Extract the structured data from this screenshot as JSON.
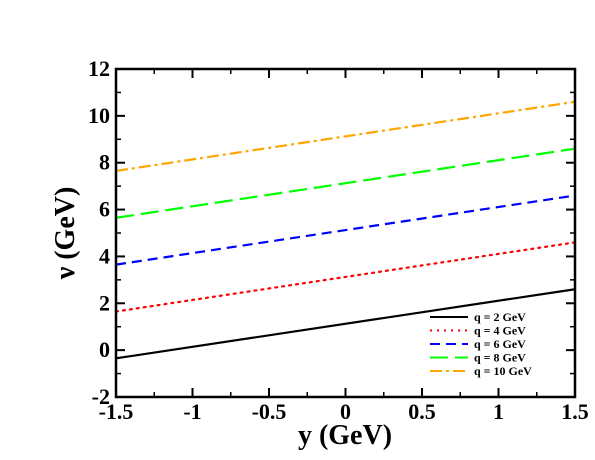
{
  "chart_data": {
    "type": "line",
    "xlabel": "y (GeV)",
    "ylabel": "ν  (GeV)",
    "xlim": [
      -1.5,
      1.5
    ],
    "ylim": [
      -2,
      12
    ],
    "grid": false,
    "legend_position": "bottom-right",
    "xticks": [
      {
        "value": -1.5,
        "label": "-1.5"
      },
      {
        "value": -1,
        "label": "-1"
      },
      {
        "value": -0.5,
        "label": "-0.5"
      },
      {
        "value": 0,
        "label": "0"
      },
      {
        "value": 0.5,
        "label": "0.5"
      },
      {
        "value": 1,
        "label": "1"
      },
      {
        "value": 1.5,
        "label": "1.5"
      }
    ],
    "yticks": [
      {
        "value": -2,
        "label": "-2"
      },
      {
        "value": 0,
        "label": "0"
      },
      {
        "value": 2,
        "label": "2"
      },
      {
        "value": 4,
        "label": "4"
      },
      {
        "value": 6,
        "label": "6"
      },
      {
        "value": 8,
        "label": "8"
      },
      {
        "value": 10,
        "label": "10"
      },
      {
        "value": 12,
        "label": "12"
      }
    ],
    "series": [
      {
        "name": "q = 2 GeV",
        "color": "#000000",
        "dash": "solid",
        "x": [
          -1.5,
          1.5
        ],
        "y": [
          -0.35,
          2.6
        ]
      },
      {
        "name": "q = 4 GeV",
        "color": "#ff0000",
        "dash": "dotted",
        "x": [
          -1.5,
          1.5
        ],
        "y": [
          1.65,
          4.6
        ]
      },
      {
        "name": "q = 6 GeV",
        "color": "#0000ff",
        "dash": "dashed",
        "x": [
          -1.5,
          1.5
        ],
        "y": [
          3.65,
          6.6
        ]
      },
      {
        "name": "q = 8 GeV",
        "color": "#00ff00",
        "dash": "long-dashed",
        "x": [
          -1.5,
          1.5
        ],
        "y": [
          5.65,
          8.6
        ]
      },
      {
        "name": "q = 10 GeV",
        "color": "#ffa500",
        "dash": "dash-dot",
        "x": [
          -1.5,
          1.5
        ],
        "y": [
          7.65,
          10.6
        ]
      }
    ]
  }
}
